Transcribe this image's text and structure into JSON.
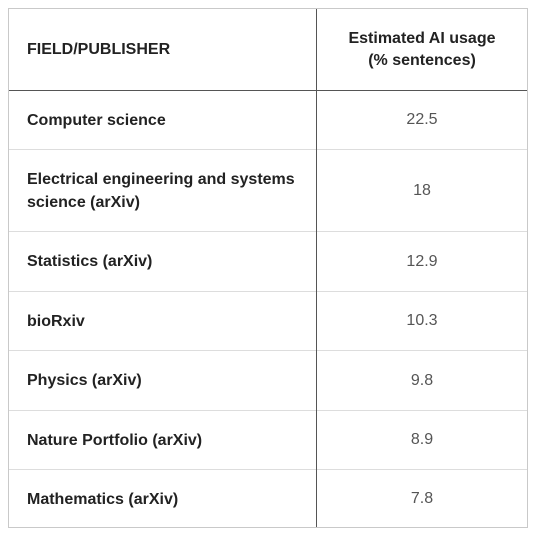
{
  "chart_data": {
    "type": "table",
    "columns": [
      {
        "line1": "FIELD/PUBLISHER",
        "line2": ""
      },
      {
        "line1": "Estimated AI usage",
        "line2": "(% sentences)"
      }
    ],
    "rows": [
      {
        "field": "Computer science",
        "value": "22.5"
      },
      {
        "field": "Electrical engineering and systems science (arXiv)",
        "value": "18"
      },
      {
        "field": "Statistics (arXiv)",
        "value": "12.9"
      },
      {
        "field": "bioRxiv",
        "value": "10.3"
      },
      {
        "field": "Physics (arXiv)",
        "value": "9.8"
      },
      {
        "field": "Nature Portfolio (arXiv)",
        "value": "8.9"
      },
      {
        "field": "Mathematics (arXiv)",
        "value": "7.8"
      }
    ]
  }
}
